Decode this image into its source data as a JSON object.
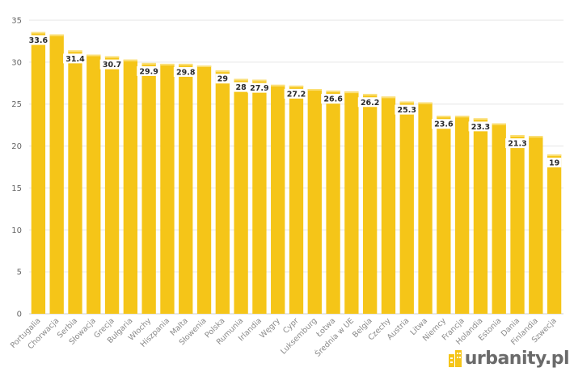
{
  "chart_data": {
    "type": "bar",
    "title": "",
    "xlabel": "",
    "ylabel": "",
    "ylim": [
      0,
      35
    ],
    "yticks": [
      0,
      5,
      10,
      15,
      20,
      25,
      30,
      35
    ],
    "grid": true,
    "bar_color": "#f5c518",
    "categories": [
      "Portugalia",
      "Chorwacja",
      "Serbia",
      "Słowacja",
      "Grecja",
      "Bułgaria",
      "Włochy",
      "Hiszpania",
      "Malta",
      "Słowenia",
      "Polska",
      "Rumunia",
      "Irlandia",
      "Węgry",
      "Cypr",
      "Luksemburg",
      "Łotwa",
      "Średnia w UE",
      "Belgia",
      "Czechy",
      "Austria",
      "Litwa",
      "Niemcy",
      "Francja",
      "Holandia",
      "Estonia",
      "Dania",
      "Finlandia",
      "Szwecja"
    ],
    "values": [
      33.6,
      33.3,
      31.4,
      30.9,
      30.7,
      30.3,
      29.9,
      29.8,
      29.8,
      29.6,
      29.0,
      28.0,
      27.9,
      27.3,
      27.2,
      26.8,
      26.6,
      26.5,
      26.2,
      25.9,
      25.3,
      25.2,
      23.6,
      23.6,
      23.3,
      22.7,
      21.3,
      21.2,
      19.0
    ],
    "data_labels": [
      "33.6",
      "",
      "31.4",
      "",
      "30.7",
      "",
      "29.9",
      "",
      "29.8",
      "",
      "29",
      "28",
      "27.9",
      "",
      "27.2",
      "",
      "26.6",
      "",
      "26.2",
      "",
      "25.3",
      "",
      "23.6",
      "",
      "23.3",
      "",
      "21.3",
      "",
      "19"
    ]
  },
  "logo": {
    "text": "urbanity.pl"
  }
}
